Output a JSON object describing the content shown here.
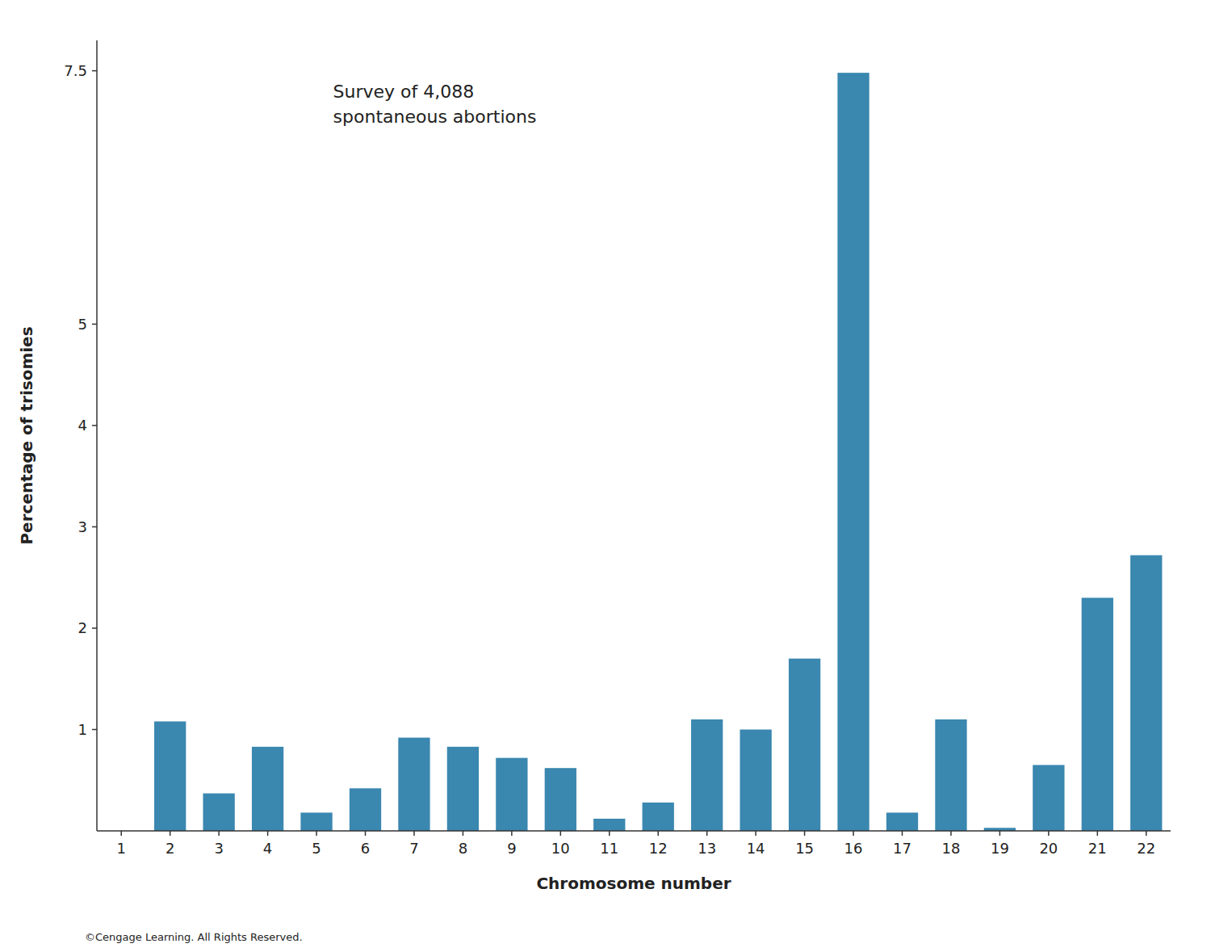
{
  "chart_data": {
    "type": "bar",
    "categories": [
      "1",
      "2",
      "3",
      "4",
      "5",
      "6",
      "7",
      "8",
      "9",
      "10",
      "11",
      "12",
      "13",
      "14",
      "15",
      "16",
      "17",
      "18",
      "19",
      "20",
      "21",
      "22"
    ],
    "values": [
      0.0,
      1.08,
      0.37,
      0.83,
      0.18,
      0.42,
      0.92,
      0.83,
      0.72,
      0.62,
      0.12,
      0.28,
      1.1,
      1.0,
      1.7,
      7.48,
      0.18,
      1.1,
      0.03,
      0.65,
      2.3,
      2.72
    ],
    "color": "#3a87b0",
    "xlabel": "Chromosome number",
    "ylabel": "Percentage of trisomies",
    "annotations": [
      "Survey of 4,088\nspontaneous abortions",
      "©Cengage Learning. All Rights Reserved."
    ],
    "ylim": [
      0,
      7.8
    ],
    "yticks": [
      1,
      2,
      3,
      4,
      5,
      7.5
    ],
    "grid": false
  }
}
